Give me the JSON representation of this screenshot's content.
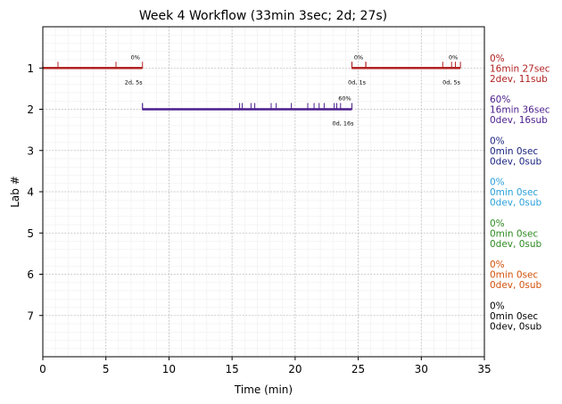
{
  "chart_data": {
    "type": "timeline",
    "title": "Week 4 Workflow (33min 3sec; 2d; 27s)",
    "xlabel": "Time (min)",
    "ylabel": "Lab #",
    "xlim": [
      0,
      35
    ],
    "ylim": [
      8,
      0
    ],
    "xticks": [
      0,
      5,
      10,
      15,
      20,
      25,
      30,
      35
    ],
    "yticks": [
      1,
      2,
      3,
      4,
      5,
      6,
      7
    ],
    "grid": true,
    "segments": [
      {
        "lab": 1,
        "start": 0.0,
        "end": 7.9,
        "color": "#b22222",
        "pct": "0%",
        "sub": "2d, 5s",
        "ticks": [
          1.2,
          5.8,
          7.9
        ]
      },
      {
        "lab": 1,
        "start": 24.5,
        "end": 25.6,
        "color": "#b22222",
        "pct": "0%",
        "sub": "0d, 1s",
        "ticks": [
          25.6
        ]
      },
      {
        "lab": 1,
        "start": 25.6,
        "end": 33.1,
        "color": "#b22222",
        "pct": "0%",
        "sub": "0d, 5s",
        "ticks": [
          31.7,
          32.4,
          32.7,
          33.1
        ]
      },
      {
        "lab": 2,
        "start": 7.9,
        "end": 24.5,
        "color": "#4b1e8c",
        "pct": "60%",
        "sub": "0d, 16s",
        "ticks": [
          15.6,
          15.8,
          16.5,
          16.8,
          18.1,
          18.5,
          19.7,
          21.0,
          21.5,
          21.9,
          22.3,
          23.1,
          23.3,
          23.6,
          24.5
        ]
      }
    ],
    "labs": [
      {
        "lab": 1,
        "pct": "0%",
        "time": "16min 27sec",
        "devsub": "2dev, 11sub",
        "color": "#b22222"
      },
      {
        "lab": 2,
        "pct": "60%",
        "time": "16min 36sec",
        "devsub": "0dev, 16sub",
        "color": "#4b1e8c"
      },
      {
        "lab": 3,
        "pct": "0%",
        "time": "0min 0sec",
        "devsub": "0dev, 0sub",
        "color": "#1a237e"
      },
      {
        "lab": 4,
        "pct": "0%",
        "time": "0min 0sec",
        "devsub": "0dev, 0sub",
        "color": "#2a9fd8"
      },
      {
        "lab": 5,
        "pct": "0%",
        "time": "0min 0sec",
        "devsub": "0dev, 0sub",
        "color": "#2e8b22"
      },
      {
        "lab": 6,
        "pct": "0%",
        "time": "0min 0sec",
        "devsub": "0dev, 0sub",
        "color": "#d2510a"
      },
      {
        "lab": 7,
        "pct": "0%",
        "time": "0min 0sec",
        "devsub": "0dev, 0sub",
        "color": "#000000"
      }
    ]
  }
}
